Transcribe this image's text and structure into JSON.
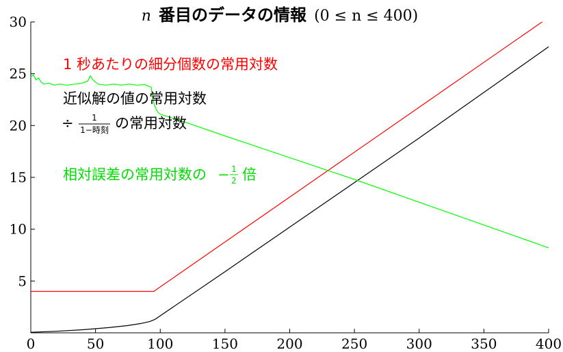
{
  "chart_data": {
    "type": "line",
    "title": {
      "var": "n",
      "text": "番目のデータの情報",
      "range": "(0 ≤ n ≤ 400)"
    },
    "xlim": [
      0,
      400
    ],
    "ylim": [
      0,
      30
    ],
    "x_ticks": [
      0,
      50,
      100,
      150,
      200,
      250,
      300,
      350,
      400
    ],
    "y_ticks": [
      5,
      10,
      15,
      20,
      25,
      30
    ],
    "grid": false,
    "annotations": {
      "red": "1 秒あたりの細分個数の常用対数",
      "black_line1": "近似解の値の常用対数",
      "black_line2_prefix": "÷",
      "black_frac_num": "1",
      "black_frac_den": "1−時刻",
      "black_line2_suffix": "の常用対数",
      "green_prefix": "相対誤差の常用対数の",
      "green_minus": "−",
      "green_frac_num": "1",
      "green_frac_den": "2",
      "green_suffix": "倍"
    },
    "series": [
      {
        "color": "#ff0000",
        "points": [
          [
            0,
            4.0
          ],
          [
            95,
            4.0
          ],
          [
            395,
            30.0
          ]
        ]
      },
      {
        "color": "#000000",
        "points": [
          [
            0,
            0.05
          ],
          [
            20,
            0.15
          ],
          [
            40,
            0.3
          ],
          [
            60,
            0.5
          ],
          [
            75,
            0.7
          ],
          [
            85,
            0.9
          ],
          [
            92,
            1.1
          ],
          [
            96,
            1.3
          ],
          [
            150,
            5.9
          ],
          [
            200,
            10.2
          ],
          [
            250,
            14.5
          ],
          [
            300,
            18.8
          ],
          [
            350,
            23.2
          ],
          [
            400,
            27.6
          ]
        ]
      },
      {
        "color": "#00ff00",
        "points": [
          [
            0,
            24.7
          ],
          [
            2,
            24.9
          ],
          [
            4,
            24.4
          ],
          [
            6,
            24.6
          ],
          [
            8,
            24.2
          ],
          [
            10,
            24.0
          ],
          [
            14,
            24.1
          ],
          [
            18,
            23.9
          ],
          [
            22,
            24.0
          ],
          [
            28,
            23.9
          ],
          [
            34,
            24.0
          ],
          [
            40,
            24.1
          ],
          [
            44,
            24.3
          ],
          [
            46,
            24.8
          ],
          [
            48,
            24.4
          ],
          [
            52,
            24.0
          ],
          [
            58,
            23.9
          ],
          [
            64,
            24.0
          ],
          [
            70,
            23.9
          ],
          [
            76,
            24.0
          ],
          [
            82,
            23.9
          ],
          [
            88,
            23.95
          ],
          [
            93,
            23.7
          ],
          [
            94,
            22.8
          ],
          [
            95,
            22.2
          ],
          [
            96,
            21.8
          ],
          [
            98,
            21.3
          ],
          [
            100,
            21.1
          ],
          [
            120,
            20.3
          ],
          [
            150,
            19.0
          ],
          [
            200,
            16.9
          ],
          [
            250,
            14.8
          ],
          [
            300,
            12.6
          ],
          [
            350,
            10.4
          ],
          [
            400,
            8.2
          ]
        ]
      }
    ]
  }
}
